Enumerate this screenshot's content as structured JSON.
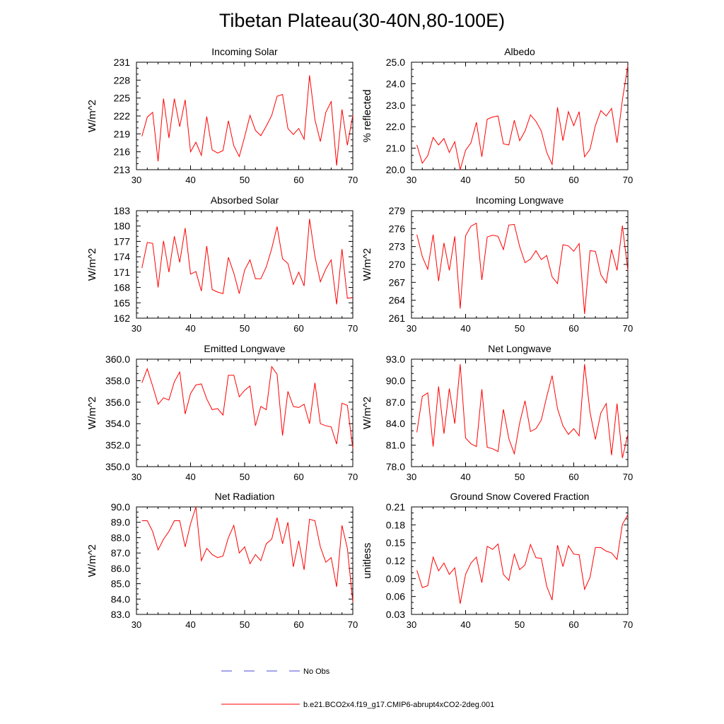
{
  "title": "Tibetan Plateau(30-40N,80-100E)",
  "colors": {
    "series": "#ff0000",
    "obs": "#4a4ad6",
    "axis": "#000000"
  },
  "legend": {
    "entries": [
      {
        "label": "No Obs",
        "style": "dashed",
        "color": "#4a4ad6"
      },
      {
        "label": "b.e21.BCO2x4.f19_g17.CMIP6-abrupt4xCO2-2deg.001",
        "style": "solid",
        "color": "#ff0000"
      }
    ]
  },
  "chart_data": [
    {
      "type": "line",
      "title": "Incoming Solar",
      "ylabel": "W/m^2",
      "xlim": [
        30,
        70
      ],
      "ylim": [
        213,
        231
      ],
      "xticks": [
        30,
        40,
        50,
        60,
        70
      ],
      "yticks": [
        213,
        216,
        219,
        222,
        225,
        228,
        231
      ],
      "ytick_labels": [
        "213",
        "216",
        "219",
        "222",
        "225",
        "228",
        "231"
      ],
      "x": [
        31,
        32,
        33,
        34,
        35,
        36,
        37,
        38,
        39,
        40,
        41,
        42,
        43,
        44,
        45,
        46,
        47,
        48,
        49,
        50,
        51,
        52,
        53,
        54,
        55,
        56,
        57,
        58,
        59,
        60,
        61,
        62,
        63,
        64,
        65,
        66,
        67,
        68,
        69,
        70
      ],
      "values": [
        218.6,
        221.8,
        222.6,
        214.4,
        224.9,
        218.3,
        224.9,
        220.2,
        224.7,
        216.0,
        217.6,
        215.4,
        221.9,
        216.3,
        215.8,
        216.2,
        221.2,
        217.0,
        215.2,
        218.5,
        222.1,
        219.6,
        218.7,
        220.3,
        222.1,
        225.3,
        225.6,
        219.9,
        218.9,
        219.9,
        218.1,
        228.8,
        221.4,
        217.7,
        222.6,
        224.4,
        213.7,
        223.1,
        217.1,
        222.1
      ]
    },
    {
      "type": "line",
      "title": "Albedo",
      "ylabel": "% reflected",
      "xlim": [
        30,
        70
      ],
      "ylim": [
        20.0,
        25.0
      ],
      "xticks": [
        30,
        40,
        50,
        60,
        70
      ],
      "yticks": [
        20,
        21,
        22,
        23,
        24,
        25
      ],
      "ytick_labels": [
        "20.0",
        "21.0",
        "22.0",
        "23.0",
        "24.0",
        "25.0"
      ],
      "x": [
        31,
        32,
        33,
        34,
        35,
        36,
        37,
        38,
        39,
        40,
        41,
        42,
        43,
        44,
        45,
        46,
        47,
        48,
        49,
        50,
        51,
        52,
        53,
        54,
        55,
        56,
        57,
        58,
        59,
        60,
        61,
        62,
        63,
        64,
        65,
        66,
        67,
        68,
        69,
        70
      ],
      "values": [
        21.15,
        20.3,
        20.65,
        21.5,
        21.15,
        21.45,
        20.8,
        21.3,
        20.0,
        20.9,
        21.25,
        22.2,
        20.6,
        22.35,
        22.45,
        22.5,
        21.2,
        21.15,
        22.3,
        21.35,
        21.8,
        22.55,
        22.25,
        21.8,
        20.8,
        20.25,
        22.9,
        21.35,
        22.7,
        22.05,
        22.7,
        20.6,
        20.95,
        22.05,
        22.75,
        22.5,
        22.85,
        21.25,
        23.25,
        24.85
      ]
    },
    {
      "type": "line",
      "title": "Absorbed Solar",
      "ylabel": "W/m^2",
      "xlim": [
        30,
        70
      ],
      "ylim": [
        162,
        183
      ],
      "xticks": [
        30,
        40,
        50,
        60,
        70
      ],
      "yticks": [
        162,
        165,
        168,
        171,
        174,
        177,
        180,
        183
      ],
      "ytick_labels": [
        "162",
        "165",
        "168",
        "171",
        "174",
        "177",
        "180",
        "183"
      ],
      "x": [
        31,
        32,
        33,
        34,
        35,
        36,
        37,
        38,
        39,
        40,
        41,
        42,
        43,
        44,
        45,
        46,
        47,
        48,
        49,
        50,
        51,
        52,
        53,
        54,
        55,
        56,
        57,
        58,
        59,
        60,
        61,
        62,
        63,
        64,
        65,
        66,
        67,
        68,
        69,
        70
      ],
      "values": [
        171.8,
        176.8,
        176.6,
        168.0,
        177.1,
        171.0,
        178.0,
        172.9,
        179.6,
        170.6,
        171.1,
        167.3,
        176.1,
        167.6,
        167.1,
        166.8,
        173.9,
        170.8,
        166.8,
        171.4,
        173.4,
        169.7,
        169.7,
        172.0,
        175.6,
        179.9,
        173.6,
        172.7,
        168.6,
        171.0,
        168.3,
        181.4,
        174.1,
        169.1,
        171.6,
        173.4,
        164.7,
        175.5,
        165.9,
        166.0
      ]
    },
    {
      "type": "line",
      "title": "Incoming Longwave",
      "ylabel": "W/m^2",
      "xlim": [
        30,
        70
      ],
      "ylim": [
        261,
        279
      ],
      "xticks": [
        30,
        40,
        50,
        60,
        70
      ],
      "yticks": [
        261,
        264,
        267,
        270,
        273,
        276,
        279
      ],
      "ytick_labels": [
        "261",
        "264",
        "267",
        "270",
        "273",
        "276",
        "279"
      ],
      "x": [
        31,
        32,
        33,
        34,
        35,
        36,
        37,
        38,
        39,
        40,
        41,
        42,
        43,
        44,
        45,
        46,
        47,
        48,
        49,
        50,
        51,
        52,
        53,
        54,
        55,
        56,
        57,
        58,
        59,
        60,
        61,
        62,
        63,
        64,
        65,
        66,
        67,
        68,
        69,
        70
      ],
      "values": [
        275.0,
        271.3,
        269.2,
        275.0,
        267.2,
        273.6,
        269.0,
        274.7,
        262.6,
        274.8,
        276.4,
        276.9,
        267.4,
        274.6,
        274.9,
        274.7,
        272.5,
        276.6,
        276.7,
        273.0,
        270.3,
        270.9,
        272.3,
        270.8,
        271.5,
        267.9,
        266.8,
        273.3,
        273.1,
        272.2,
        273.5,
        261.7,
        272.3,
        272.2,
        268.3,
        266.9,
        272.5,
        269.0,
        276.5,
        269.0
      ]
    },
    {
      "type": "line",
      "title": "Emitted Longwave",
      "ylabel": "W/m^2",
      "xlim": [
        30,
        70
      ],
      "ylim": [
        350.0,
        360.0
      ],
      "xticks": [
        30,
        40,
        50,
        60,
        70
      ],
      "yticks": [
        350,
        352,
        354,
        356,
        358,
        360
      ],
      "ytick_labels": [
        "350.0",
        "352.0",
        "354.0",
        "356.0",
        "358.0",
        "360.0"
      ],
      "x": [
        31,
        32,
        33,
        34,
        35,
        36,
        37,
        38,
        39,
        40,
        41,
        42,
        43,
        44,
        45,
        46,
        47,
        48,
        49,
        50,
        51,
        52,
        53,
        54,
        55,
        56,
        57,
        58,
        59,
        60,
        61,
        62,
        63,
        64,
        65,
        66,
        67,
        68,
        69,
        70
      ],
      "values": [
        357.8,
        359.1,
        357.5,
        355.8,
        356.4,
        356.2,
        357.9,
        358.8,
        354.9,
        356.8,
        357.6,
        357.7,
        356.3,
        355.3,
        355.4,
        354.8,
        358.5,
        358.5,
        356.5,
        357.1,
        357.5,
        353.8,
        355.6,
        355.3,
        359.3,
        358.6,
        352.9,
        357.0,
        355.6,
        355.5,
        355.8,
        354.0,
        357.8,
        354.0,
        353.8,
        353.7,
        352.1,
        355.9,
        355.7,
        351.7
      ]
    },
    {
      "type": "line",
      "title": "Net Longwave",
      "ylabel": "W/m^2",
      "xlim": [
        30,
        70
      ],
      "ylim": [
        78.0,
        93.0
      ],
      "xticks": [
        30,
        40,
        50,
        60,
        70
      ],
      "yticks": [
        78,
        81,
        84,
        87,
        90,
        93
      ],
      "ytick_labels": [
        "78.0",
        "81.0",
        "84.0",
        "87.0",
        "90.0",
        "93.0"
      ],
      "x": [
        31,
        32,
        33,
        34,
        35,
        36,
        37,
        38,
        39,
        40,
        41,
        42,
        43,
        44,
        45,
        46,
        47,
        48,
        49,
        50,
        51,
        52,
        53,
        54,
        55,
        56,
        57,
        58,
        59,
        60,
        61,
        62,
        63,
        64,
        65,
        66,
        67,
        68,
        69,
        70
      ],
      "values": [
        82.8,
        87.8,
        88.3,
        80.8,
        89.2,
        82.6,
        88.9,
        84.0,
        92.3,
        82.0,
        81.2,
        80.8,
        88.8,
        80.7,
        80.5,
        80.1,
        86.0,
        81.9,
        79.8,
        84.1,
        87.2,
        82.9,
        83.3,
        84.5,
        87.8,
        90.7,
        86.1,
        83.7,
        82.5,
        83.3,
        82.3,
        92.3,
        85.6,
        81.8,
        85.5,
        86.8,
        79.6,
        86.8,
        79.2,
        82.5
      ]
    },
    {
      "type": "line",
      "title": "Net Radiation",
      "ylabel": "W/m^2",
      "xlim": [
        30,
        70
      ],
      "ylim": [
        83.0,
        90.0
      ],
      "xticks": [
        30,
        40,
        50,
        60,
        70
      ],
      "yticks": [
        83,
        84,
        85,
        86,
        87,
        88,
        89,
        90
      ],
      "ytick_labels": [
        "83.0",
        "84.0",
        "85.0",
        "86.0",
        "87.0",
        "88.0",
        "89.0",
        "90.0"
      ],
      "x": [
        31,
        32,
        33,
        34,
        35,
        36,
        37,
        38,
        39,
        40,
        41,
        42,
        43,
        44,
        45,
        46,
        47,
        48,
        49,
        50,
        51,
        52,
        53,
        54,
        55,
        56,
        57,
        58,
        59,
        60,
        61,
        62,
        63,
        64,
        65,
        66,
        67,
        68,
        69,
        70
      ],
      "values": [
        89.1,
        89.1,
        88.4,
        87.2,
        87.9,
        88.4,
        89.1,
        89.1,
        87.4,
        88.9,
        90.0,
        86.5,
        87.3,
        86.9,
        86.7,
        86.8,
        88.0,
        88.8,
        87.0,
        87.4,
        86.3,
        86.9,
        86.5,
        87.6,
        87.9,
        89.3,
        87.6,
        89.0,
        86.1,
        87.8,
        85.9,
        89.2,
        89.1,
        87.4,
        86.4,
        86.7,
        84.8,
        88.8,
        87.3,
        83.8
      ]
    },
    {
      "type": "line",
      "title": "Ground Snow Covered Fraction",
      "ylabel": "unitless",
      "xlim": [
        30,
        70
      ],
      "ylim": [
        0.03,
        0.21
      ],
      "xticks": [
        30,
        40,
        50,
        60,
        70
      ],
      "yticks": [
        0.03,
        0.06,
        0.09,
        0.12,
        0.15,
        0.18,
        0.21
      ],
      "ytick_labels": [
        "0.03",
        "0.06",
        "0.09",
        "0.12",
        "0.15",
        "0.18",
        "0.21"
      ],
      "x": [
        31,
        32,
        33,
        34,
        35,
        36,
        37,
        38,
        39,
        40,
        41,
        42,
        43,
        44,
        45,
        46,
        47,
        48,
        49,
        50,
        51,
        52,
        53,
        54,
        55,
        56,
        57,
        58,
        59,
        60,
        61,
        62,
        63,
        64,
        65,
        66,
        67,
        68,
        69,
        70
      ],
      "values": [
        0.104,
        0.075,
        0.078,
        0.126,
        0.103,
        0.116,
        0.097,
        0.108,
        0.048,
        0.097,
        0.116,
        0.126,
        0.083,
        0.144,
        0.139,
        0.148,
        0.097,
        0.087,
        0.131,
        0.105,
        0.113,
        0.147,
        0.125,
        0.124,
        0.077,
        0.054,
        0.146,
        0.11,
        0.145,
        0.131,
        0.13,
        0.072,
        0.092,
        0.142,
        0.142,
        0.136,
        0.133,
        0.122,
        0.181,
        0.197
      ]
    }
  ]
}
